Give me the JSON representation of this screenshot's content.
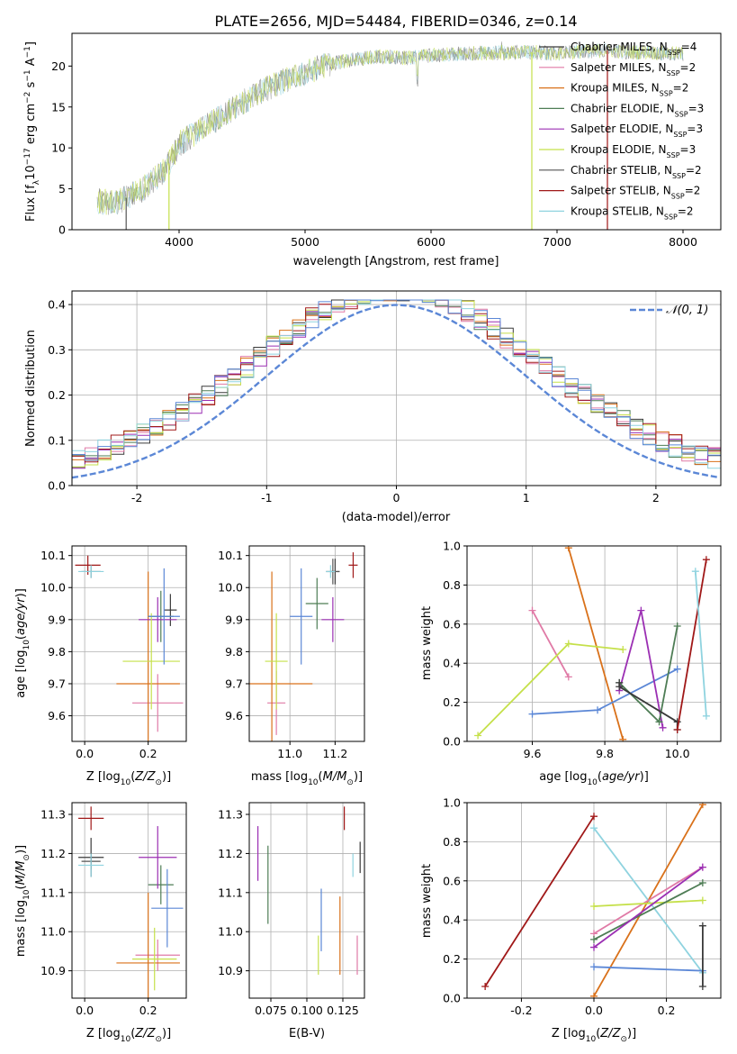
{
  "figure": {
    "title": "PLATE=2656, MJD=54484, FIBERID=0346, z=0.14",
    "colors": {
      "Chabrier MILES": "#3a3a3a",
      "Salpeter MILES": "#e07aa6",
      "Kroupa MILES": "#d9711a",
      "Chabrier ELODIE": "#4e7d55",
      "Salpeter ELODIE": "#9b2fb3",
      "Kroupa ELODIE": "#c5e04a",
      "Chabrier STELIB": "#555555",
      "Salpeter STELIB": "#a01818",
      "Kroupa STELIB": "#8fd3df",
      "accent_blue": "#5b87d6",
      "gray_spec": "#888888"
    }
  },
  "chart_data": [
    {
      "id": "spectrum",
      "type": "line",
      "title": "PLATE=2656, MJD=54484, FIBERID=0346, z=0.14",
      "xlabel": "wavelength [Angstrom, rest frame]",
      "ylabel": "Flux [f_λ 10^-17 erg cm^-2 s^-1 A^-1]",
      "xlim": [
        3150,
        8300
      ],
      "ylim": [
        0,
        24
      ],
      "xticks": [
        4000,
        5000,
        6000,
        7000,
        8000
      ],
      "yticks": [
        0,
        5,
        10,
        15,
        20
      ],
      "legend_position": "top-right",
      "legend": [
        {
          "label": "Chabrier MILES, N_SSP=4",
          "text": "Chabrier MILES, N",
          "sub": "SSP",
          "n": "=4"
        },
        {
          "label": "Salpeter MILES, N_SSP=2",
          "text": "Salpeter MILES, N",
          "sub": "SSP",
          "n": "=2"
        },
        {
          "label": "Kroupa MILES, N_SSP=2",
          "text": "Kroupa MILES, N",
          "sub": "SSP",
          "n": "=2"
        },
        {
          "label": "Chabrier ELODIE, N_SSP=3",
          "text": "Chabrier ELODIE, N",
          "sub": "SSP",
          "n": "=3"
        },
        {
          "label": "Salpeter ELODIE, N_SSP=3",
          "text": "Salpeter ELODIE, N",
          "sub": "SSP",
          "n": "=3"
        },
        {
          "label": "Kroupa ELODIE, N_SSP=3",
          "text": "Kroupa ELODIE, N",
          "sub": "SSP",
          "n": "=3"
        },
        {
          "label": "Chabrier STELIB, N_SSP=2",
          "text": "Chabrier STELIB, N",
          "sub": "SSP",
          "n": "=2"
        },
        {
          "label": "Salpeter STELIB, N_SSP=2",
          "text": "Salpeter STELIB, N",
          "sub": "SSP",
          "n": "=2"
        },
        {
          "label": "Kroupa STELIB, N_SSP=2",
          "text": "Kroupa STELIB, N",
          "sub": "SSP",
          "n": "=2"
        }
      ],
      "continuum": {
        "x": [
          3350,
          3500,
          3700,
          3900,
          4000,
          4200,
          4400,
          4600,
          4800,
          5000,
          5200,
          5400,
          5600,
          5800,
          6000,
          6200,
          6400,
          6600,
          6800,
          7000,
          7200,
          7400,
          7600,
          7800,
          8000
        ],
        "y": [
          3.5,
          3.3,
          4.8,
          7.5,
          10.5,
          12.5,
          14.5,
          16.5,
          18.0,
          19.2,
          20.3,
          20.8,
          21.2,
          21.0,
          21.3,
          21.5,
          21.6,
          21.6,
          21.7,
          21.5,
          21.8,
          21.9,
          21.7,
          21.6,
          21.5
        ]
      }
    },
    {
      "id": "residuals",
      "type": "line",
      "xlabel": "(data-model)/error",
      "ylabel": "Normed distribution",
      "xlim": [
        -2.5,
        2.5
      ],
      "ylim": [
        0,
        0.43
      ],
      "xticks": [
        -2,
        -1,
        0,
        1,
        2
      ],
      "yticks": [
        0.0,
        0.1,
        0.2,
        0.3,
        0.4
      ],
      "grid": true,
      "legend_position": "top-right",
      "gaussian_label": "𝒩(0, 1)",
      "gaussian": {
        "mean": 0,
        "sigma": 1
      }
    },
    {
      "id": "age-vs-Z",
      "type": "scatter",
      "xlabel": "Z [log10(Z/Z☉)]",
      "ylabel": "age [log10(age/yr)]",
      "xlim": [
        -0.04,
        0.32
      ],
      "ylim": [
        9.52,
        10.13
      ],
      "xticks": [
        0.0,
        0.2
      ],
      "yticks": [
        9.6,
        9.7,
        9.8,
        9.9,
        10.0,
        10.1
      ],
      "grid": true,
      "points": [
        {
          "model": "Chabrier MILES",
          "x": 0.27,
          "y": 9.93,
          "xerr": 0.02,
          "yerr": 0.05
        },
        {
          "model": "Salpeter MILES",
          "x": 0.23,
          "y": 9.64,
          "xerr": 0.08,
          "yerr": 0.09
        },
        {
          "model": "Kroupa MILES",
          "x": 0.2,
          "y": 9.7,
          "xerr": 0.1,
          "yerr": 0.35
        },
        {
          "model": "Chabrier ELODIE",
          "x": 0.24,
          "y": 9.91,
          "xerr": 0.04,
          "yerr": 0.08
        },
        {
          "model": "Salpeter ELODIE",
          "x": 0.23,
          "y": 9.9,
          "xerr": 0.06,
          "yerr": 0.07
        },
        {
          "model": "Kroupa ELODIE",
          "x": 0.21,
          "y": 9.77,
          "xerr": 0.09,
          "yerr": 0.15
        },
        {
          "model": "Chabrier STELIB",
          "x": 0.02,
          "y": 10.05,
          "xerr": 0.03,
          "yerr": 0.02
        },
        {
          "model": "Salpeter STELIB",
          "x": 0.01,
          "y": 10.07,
          "xerr": 0.04,
          "yerr": 0.03
        },
        {
          "model": "Kroupa STELIB",
          "x": 0.02,
          "y": 10.05,
          "xerr": 0.04,
          "yerr": 0.02
        },
        {
          "model": "accent",
          "x": 0.25,
          "y": 9.91,
          "xerr": 0.05,
          "yerr": 0.15
        }
      ]
    },
    {
      "id": "age-vs-mass",
      "type": "scatter",
      "xlabel": "mass [log10(M/M☉)]",
      "xlim": [
        10.82,
        11.33
      ],
      "ylim": [
        9.52,
        10.13
      ],
      "xticks": [
        11.0,
        11.2
      ],
      "yticks": [
        9.6,
        9.7,
        9.8,
        9.9,
        10.0,
        10.1
      ],
      "grid": true,
      "points": [
        {
          "model": "Chabrier MILES",
          "x": 11.2,
          "y": 10.05,
          "xerr": 0.02,
          "yerr": 0.04
        },
        {
          "model": "Salpeter MILES",
          "x": 10.94,
          "y": 9.64,
          "xerr": 0.04,
          "yerr": 0.1
        },
        {
          "model": "Kroupa MILES",
          "x": 10.92,
          "y": 9.7,
          "xerr": 0.18,
          "yerr": 0.35
        },
        {
          "model": "Chabrier ELODIE",
          "x": 11.12,
          "y": 9.95,
          "xerr": 0.05,
          "yerr": 0.08
        },
        {
          "model": "Salpeter ELODIE",
          "x": 11.19,
          "y": 9.9,
          "xerr": 0.05,
          "yerr": 0.07
        },
        {
          "model": "Kroupa ELODIE",
          "x": 10.94,
          "y": 9.77,
          "xerr": 0.05,
          "yerr": 0.15
        },
        {
          "model": "Chabrier STELIB",
          "x": 11.19,
          "y": 10.05,
          "xerr": 0.03,
          "yerr": 0.04
        },
        {
          "model": "Salpeter STELIB",
          "x": 11.28,
          "y": 10.07,
          "xerr": 0.02,
          "yerr": 0.04
        },
        {
          "model": "Kroupa STELIB",
          "x": 11.18,
          "y": 10.05,
          "xerr": 0.02,
          "yerr": 0.02
        },
        {
          "model": "accent",
          "x": 11.05,
          "y": 9.91,
          "xerr": 0.05,
          "yerr": 0.15
        }
      ]
    },
    {
      "id": "massweight-vs-age",
      "type": "line",
      "xlabel": "age [log10(age/yr)]",
      "ylabel": "mass weight",
      "xlim": [
        9.42,
        10.12
      ],
      "ylim": [
        0,
        1.0
      ],
      "xticks": [
        9.6,
        9.8,
        10.0
      ],
      "yticks": [
        0.0,
        0.2,
        0.4,
        0.6,
        0.8,
        1.0
      ],
      "grid": true,
      "series": [
        {
          "model": "Kroupa MILES",
          "x": [
            9.7,
            9.85
          ],
          "y": [
            0.99,
            0.01
          ]
        },
        {
          "model": "Salpeter MILES",
          "x": [
            9.6,
            9.7
          ],
          "y": [
            0.67,
            0.33
          ]
        },
        {
          "model": "Kroupa ELODIE",
          "x": [
            9.45,
            9.7,
            9.85
          ],
          "y": [
            0.03,
            0.5,
            0.47
          ]
        },
        {
          "model": "accent",
          "x": [
            9.6,
            9.78,
            10.0
          ],
          "y": [
            0.14,
            0.16,
            0.37
          ]
        },
        {
          "model": "Salpeter ELODIE",
          "x": [
            9.84,
            9.9,
            9.96
          ],
          "y": [
            0.26,
            0.67,
            0.07
          ]
        },
        {
          "model": "Chabrier ELODIE",
          "x": [
            9.84,
            9.95,
            10.0
          ],
          "y": [
            0.3,
            0.1,
            0.59
          ]
        },
        {
          "model": "Chabrier MILES",
          "x": [
            9.84,
            9.84,
            10.0,
            10.0
          ],
          "y": [
            0.3,
            0.28,
            0.1,
            0.06
          ]
        },
        {
          "model": "Salpeter STELIB",
          "x": [
            10.0,
            10.08
          ],
          "y": [
            0.06,
            0.93
          ]
        },
        {
          "model": "Kroupa STELIB",
          "x": [
            10.05,
            10.08
          ],
          "y": [
            0.87,
            0.13
          ]
        }
      ]
    },
    {
      "id": "mass-vs-Z",
      "type": "scatter",
      "xlabel": "Z [log10(Z/Z☉)]",
      "ylabel": "mass [log10(M/M☉)]",
      "xlim": [
        -0.04,
        0.32
      ],
      "ylim": [
        10.83,
        11.33
      ],
      "xticks": [
        0.0,
        0.2
      ],
      "yticks": [
        10.9,
        11.0,
        11.1,
        11.2,
        11.3
      ],
      "grid": true,
      "points": [
        {
          "model": "Chabrier MILES",
          "x": 0.02,
          "y": 11.19,
          "xerr": 0.04,
          "yerr": 0.05
        },
        {
          "model": "Salpeter MILES",
          "x": 0.23,
          "y": 10.94,
          "xerr": 0.07,
          "yerr": 0.04
        },
        {
          "model": "Kroupa MILES",
          "x": 0.2,
          "y": 10.92,
          "xerr": 0.1,
          "yerr": 0.18
        },
        {
          "model": "Chabrier ELODIE",
          "x": 0.24,
          "y": 11.12,
          "xerr": 0.04,
          "yerr": 0.05
        },
        {
          "model": "Salpeter ELODIE",
          "x": 0.23,
          "y": 11.19,
          "xerr": 0.06,
          "yerr": 0.08
        },
        {
          "model": "Kroupa ELODIE",
          "x": 0.22,
          "y": 10.93,
          "xerr": 0.07,
          "yerr": 0.08
        },
        {
          "model": "Chabrier STELIB",
          "x": 0.02,
          "y": 11.18,
          "xerr": 0.03,
          "yerr": 0.02
        },
        {
          "model": "Salpeter STELIB",
          "x": 0.02,
          "y": 11.29,
          "xerr": 0.04,
          "yerr": 0.03
        },
        {
          "model": "Kroupa STELIB",
          "x": 0.02,
          "y": 11.17,
          "xerr": 0.04,
          "yerr": 0.03
        },
        {
          "model": "accent",
          "x": 0.26,
          "y": 11.06,
          "xerr": 0.05,
          "yerr": 0.1
        }
      ]
    },
    {
      "id": "mass-vs-EBV",
      "type": "scatter",
      "xlabel": "E(B-V)",
      "xlim": [
        0.06,
        0.14
      ],
      "ylim": [
        10.83,
        11.33
      ],
      "xticks": [
        0.075,
        0.1,
        0.125
      ],
      "xticklabels": [
        "0.075",
        "0.100",
        "0.125"
      ],
      "yticks": [
        10.9,
        11.0,
        11.1,
        11.2,
        11.3
      ],
      "grid": true,
      "points": [
        {
          "model": "Chabrier MILES",
          "x": 0.137,
          "y": 11.19,
          "xerr": 0,
          "yerr": 0.04
        },
        {
          "model": "Salpeter MILES",
          "x": 0.135,
          "y": 10.94,
          "xerr": 0,
          "yerr": 0.05
        },
        {
          "model": "Kroupa MILES",
          "x": 0.123,
          "y": 10.99,
          "xerr": 0,
          "yerr": 0.1
        },
        {
          "model": "Chabrier ELODIE",
          "x": 0.073,
          "y": 11.12,
          "xerr": 0,
          "yerr": 0.1
        },
        {
          "model": "Salpeter ELODIE",
          "x": 0.066,
          "y": 11.2,
          "xerr": 0,
          "yerr": 0.07
        },
        {
          "model": "Kroupa ELODIE",
          "x": 0.108,
          "y": 10.94,
          "xerr": 0,
          "yerr": 0.05
        },
        {
          "model": "Salpeter STELIB",
          "x": 0.126,
          "y": 11.29,
          "xerr": 0,
          "yerr": 0.03
        },
        {
          "model": "Kroupa STELIB",
          "x": 0.132,
          "y": 11.17,
          "xerr": 0,
          "yerr": 0.03
        },
        {
          "model": "accent",
          "x": 0.11,
          "y": 11.03,
          "xerr": 0,
          "yerr": 0.08
        }
      ]
    },
    {
      "id": "massweight-vs-Z",
      "type": "line",
      "xlabel": "Z [log10(Z/Z☉)]",
      "ylabel": "mass weight",
      "xlim": [
        -0.35,
        0.35
      ],
      "ylim": [
        0,
        1.0
      ],
      "xticks": [
        -0.2,
        0.0,
        0.2
      ],
      "yticks": [
        0.0,
        0.2,
        0.4,
        0.6,
        0.8,
        1.0
      ],
      "grid": true,
      "series": [
        {
          "model": "Salpeter STELIB",
          "x": [
            -0.3,
            0.0
          ],
          "y": [
            0.06,
            0.93
          ]
        },
        {
          "model": "Kroupa STELIB",
          "x": [
            0.0,
            0.3
          ],
          "y": [
            0.87,
            0.13
          ]
        },
        {
          "model": "Kroupa MILES",
          "x": [
            0.0,
            0.3
          ],
          "y": [
            0.01,
            0.99
          ]
        },
        {
          "model": "Salpeter MILES",
          "x": [
            0.0,
            0.3
          ],
          "y": [
            0.33,
            0.67
          ]
        },
        {
          "model": "Kroupa ELODIE",
          "x": [
            0.0,
            0.3
          ],
          "y": [
            0.47,
            0.5
          ]
        },
        {
          "model": "Chabrier ELODIE",
          "x": [
            0.0,
            0.3
          ],
          "y": [
            0.3,
            0.59
          ]
        },
        {
          "model": "Salpeter ELODIE",
          "x": [
            0.0,
            0.3
          ],
          "y": [
            0.26,
            0.67
          ]
        },
        {
          "model": "accent",
          "x": [
            0.0,
            0.3
          ],
          "y": [
            0.16,
            0.14
          ]
        },
        {
          "model": "Chabrier MILES",
          "x": [
            0.3,
            0.3
          ],
          "y": [
            0.37,
            0.06
          ]
        }
      ]
    }
  ]
}
